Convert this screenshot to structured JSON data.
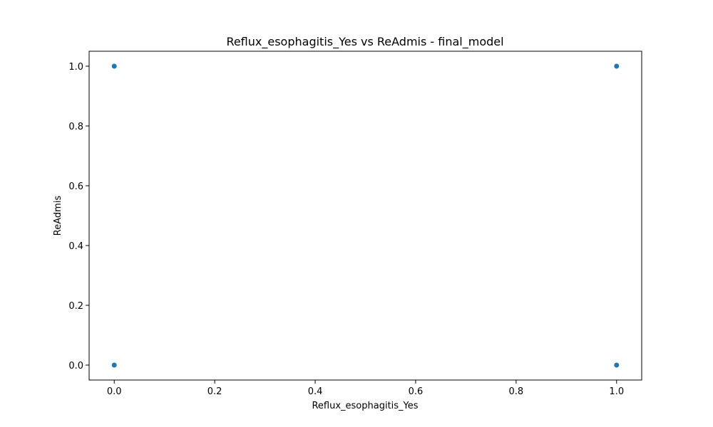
{
  "chart_data": {
    "type": "scatter",
    "title": "Reflux_esophagitis_Yes vs ReAdmis - final_model",
    "xlabel": "Reflux_esophagitis_Yes",
    "ylabel": "ReAdmis",
    "xlim": [
      -0.05,
      1.05
    ],
    "ylim": [
      -0.05,
      1.05
    ],
    "xticks": [
      0.0,
      0.2,
      0.4,
      0.6,
      0.8,
      1.0
    ],
    "yticks": [
      0.0,
      0.2,
      0.4,
      0.6,
      0.8,
      1.0
    ],
    "xtick_labels": [
      "0.0",
      "0.2",
      "0.4",
      "0.6",
      "0.8",
      "1.0"
    ],
    "ytick_labels": [
      "0.0",
      "0.2",
      "0.4",
      "0.6",
      "0.8",
      "1.0"
    ],
    "grid": false,
    "series": [
      {
        "x": [
          0,
          0,
          1,
          1
        ],
        "y": [
          0,
          1,
          0,
          1
        ],
        "color": "#1f77b4"
      }
    ]
  }
}
